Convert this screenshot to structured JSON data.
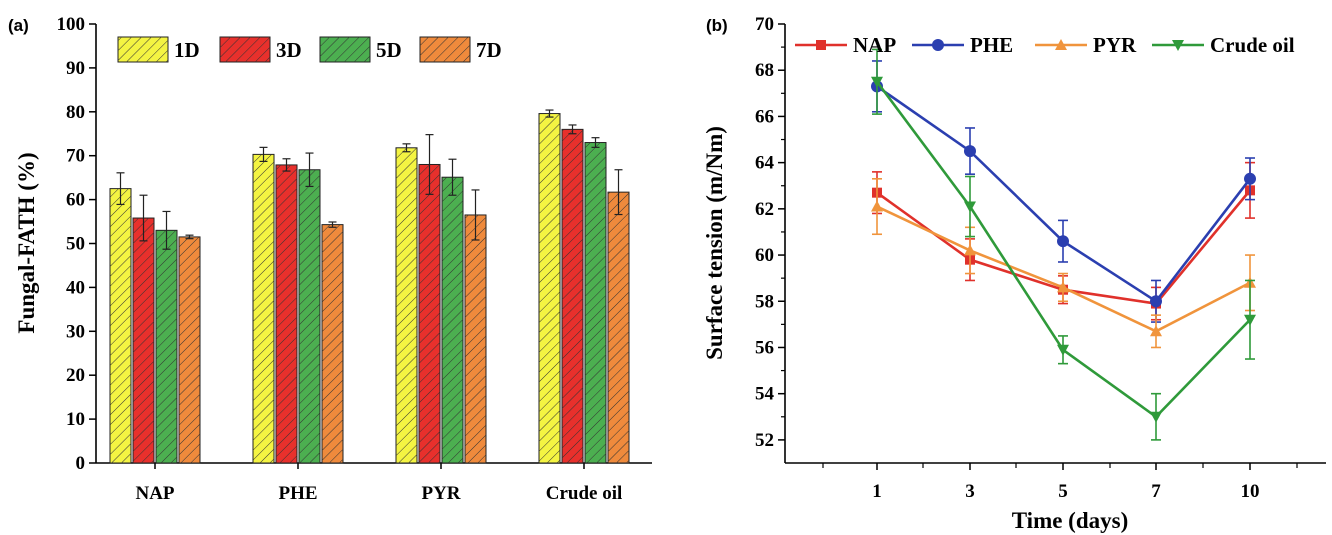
{
  "chart_data": [
    {
      "type": "bar",
      "panel_label": "(a)",
      "categories": [
        "NAP",
        "PHE",
        "PYR",
        "Crude oil"
      ],
      "ylabel": "Fungal-FATH (%)",
      "xlabel": "",
      "ylim": [
        0,
        100
      ],
      "yticks": [
        "0",
        "10",
        "20",
        "30",
        "40",
        "50",
        "60",
        "70",
        "80",
        "90",
        "100"
      ],
      "legend_placement": "top",
      "grid": false,
      "series": [
        {
          "name": "1D",
          "color": "#f4f442",
          "values": [
            62.5,
            70.3,
            71.8,
            79.6
          ],
          "errors": [
            3.6,
            1.6,
            0.9,
            0.8
          ]
        },
        {
          "name": "3D",
          "color": "#e8302c",
          "values": [
            55.8,
            67.9,
            68.0,
            76.0
          ],
          "errors": [
            5.2,
            1.4,
            6.8,
            1.0
          ]
        },
        {
          "name": "5D",
          "color": "#4caf50",
          "values": [
            53.0,
            66.8,
            65.1,
            73.0
          ],
          "errors": [
            4.3,
            3.8,
            4.1,
            1.1
          ]
        },
        {
          "name": "7D",
          "color": "#ef8a3c",
          "values": [
            51.5,
            54.3,
            56.5,
            61.7
          ],
          "errors": [
            0.4,
            0.6,
            5.7,
            5.1
          ]
        }
      ]
    },
    {
      "type": "line",
      "panel_label": "(b)",
      "x": [
        1,
        3,
        5,
        7,
        10
      ],
      "xticks": [
        "1",
        "3",
        "5",
        "7",
        "10"
      ],
      "xlabel": "Time (days)",
      "ylabel": "Surface tension (m/Nm)",
      "ylim": [
        51,
        70
      ],
      "yticks": [
        "52",
        "54",
        "56",
        "58",
        "60",
        "62",
        "64",
        "66",
        "68",
        "70"
      ],
      "legend_placement": "top",
      "grid": false,
      "series": [
        {
          "name": "NAP",
          "color": "#e0312b",
          "marker": "square",
          "values": [
            62.7,
            59.8,
            58.5,
            57.9,
            62.8
          ],
          "errors": [
            0.9,
            0.9,
            0.6,
            0.7,
            1.2
          ]
        },
        {
          "name": "PHE",
          "color": "#2b3fb0",
          "marker": "circle",
          "values": [
            67.3,
            64.5,
            60.6,
            58.0,
            63.3
          ],
          "errors": [
            1.1,
            1.0,
            0.9,
            0.9,
            0.9
          ]
        },
        {
          "name": "PYR",
          "color": "#f0943c",
          "marker": "triangle-up",
          "values": [
            62.1,
            60.2,
            58.6,
            56.7,
            58.8
          ],
          "errors": [
            1.2,
            1.0,
            0.6,
            0.7,
            1.2
          ]
        },
        {
          "name": "Crude oil",
          "color": "#2f9a3a",
          "marker": "triangle-down",
          "values": [
            67.5,
            62.1,
            55.9,
            53.0,
            57.2
          ],
          "errors": [
            1.4,
            1.3,
            0.6,
            1.0,
            1.7
          ]
        }
      ]
    }
  ]
}
